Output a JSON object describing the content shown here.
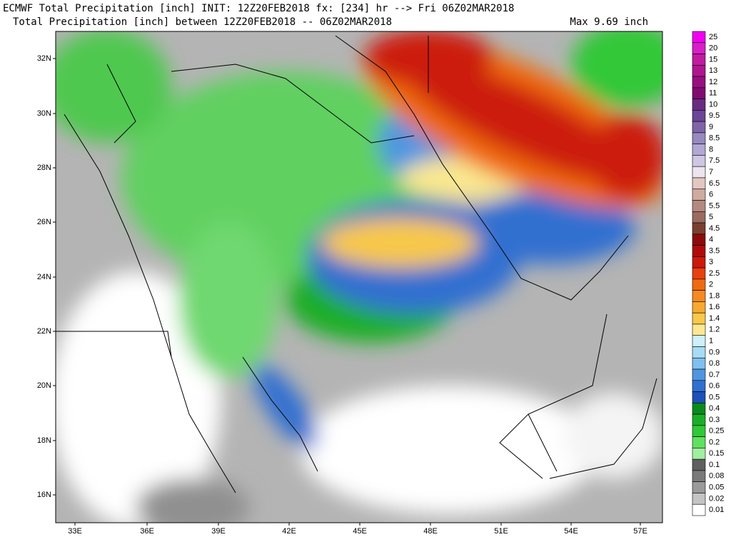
{
  "header": {
    "line1": "ECMWF Total Precipitation [inch] INIT: 12Z20FEB2018 fx: [234] hr --> Fri 06Z02MAR2018",
    "line2": "Total Precipitation [inch] between 12Z20FEB2018 -- 06Z02MAR2018",
    "max": "Max 9.69 inch"
  },
  "map": {
    "lat_labels": [
      "32N",
      "30N",
      "28N",
      "26N",
      "24N",
      "22N",
      "20N",
      "18N",
      "16N"
    ],
    "lon_labels": [
      "33E",
      "36E",
      "39E",
      "42E",
      "45E",
      "48E",
      "51E",
      "54E",
      "57E"
    ]
  },
  "legend": {
    "levels": [
      {
        "label": "25",
        "color": "#f000f0"
      },
      {
        "label": "20",
        "color": "#d81fc8"
      },
      {
        "label": "15",
        "color": "#c21aa0"
      },
      {
        "label": "13",
        "color": "#b01590"
      },
      {
        "label": "12",
        "color": "#981080"
      },
      {
        "label": "11",
        "color": "#800c70"
      },
      {
        "label": "10",
        "color": "#6a2c80"
      },
      {
        "label": "9.5",
        "color": "#6b4596"
      },
      {
        "label": "9",
        "color": "#7f64a8"
      },
      {
        "label": "8.5",
        "color": "#978ac0"
      },
      {
        "label": "8",
        "color": "#b3a8d4"
      },
      {
        "label": "7.5",
        "color": "#cfc6e4"
      },
      {
        "label": "7",
        "color": "#ece4ee"
      },
      {
        "label": "6.5",
        "color": "#e2c8c0"
      },
      {
        "label": "6",
        "color": "#cfaaa0"
      },
      {
        "label": "5.5",
        "color": "#b48a80"
      },
      {
        "label": "5",
        "color": "#9b6b60"
      },
      {
        "label": "4.5",
        "color": "#7a4030"
      },
      {
        "label": "4",
        "color": "#8c0a0a"
      },
      {
        "label": "3.5",
        "color": "#b00a0a"
      },
      {
        "label": "3",
        "color": "#cc1a0a"
      },
      {
        "label": "2.5",
        "color": "#e84010"
      },
      {
        "label": "2",
        "color": "#f06a10"
      },
      {
        "label": "1.8",
        "color": "#f68a20"
      },
      {
        "label": "1.6",
        "color": "#f7a830"
      },
      {
        "label": "1.4",
        "color": "#f8c84a"
      },
      {
        "label": "1.2",
        "color": "#fbe890"
      },
      {
        "label": "1",
        "color": "#cdf0fa"
      },
      {
        "label": "0.9",
        "color": "#a8dcf4"
      },
      {
        "label": "0.8",
        "color": "#80c0ee"
      },
      {
        "label": "0.7",
        "color": "#5096e0"
      },
      {
        "label": "0.6",
        "color": "#3070d0"
      },
      {
        "label": "0.5",
        "color": "#1e50b8"
      },
      {
        "label": "0.4",
        "color": "#0a8a1a"
      },
      {
        "label": "0.3",
        "color": "#1aae28"
      },
      {
        "label": "0.25",
        "color": "#30c838"
      },
      {
        "label": "0.2",
        "color": "#60e060"
      },
      {
        "label": "0.15",
        "color": "#a0f0a0"
      },
      {
        "label": "0.1",
        "color": "#606060"
      },
      {
        "label": "0.08",
        "color": "#7a7a7a"
      },
      {
        "label": "0.05",
        "color": "#9a9a9a"
      },
      {
        "label": "0.02",
        "color": "#c4c4c4"
      },
      {
        "label": "0.01",
        "color": "#ffffff"
      }
    ]
  }
}
